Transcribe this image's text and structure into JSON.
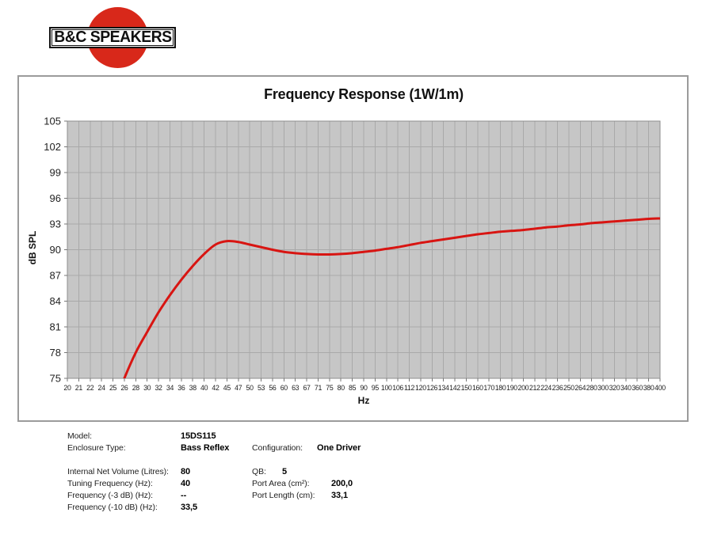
{
  "logo": {
    "text": "B&C SPEAKERS",
    "circle_color": "#d8281a"
  },
  "chart_data": {
    "type": "line",
    "title": "Frequency Response (1W/1m)",
    "xlabel": "Hz",
    "ylabel": "dB SPL",
    "x_ticks": [
      20,
      21,
      22,
      24,
      25,
      26,
      28,
      30,
      32,
      34,
      36,
      38,
      40,
      42,
      45,
      47,
      50,
      53,
      56,
      60,
      63,
      67,
      71,
      75,
      80,
      85,
      90,
      95,
      100,
      106,
      112,
      120,
      126,
      134,
      142,
      150,
      160,
      170,
      180,
      190,
      200,
      212,
      224,
      236,
      250,
      264,
      280,
      300,
      320,
      340,
      360,
      380,
      400
    ],
    "y_ticks": [
      75,
      78,
      81,
      84,
      87,
      90,
      93,
      96,
      99,
      102,
      105
    ],
    "ylim": [
      75,
      105
    ],
    "xrange_hz": [
      20,
      400
    ],
    "grid": true,
    "legend_position": "none",
    "plot_bg_color": "#c6c6c6",
    "grid_color": "#a9a9a9",
    "plot_border_color": "#8f8f8f",
    "tick_color": "#777777",
    "series": [
      {
        "name": "SPL response",
        "color": "#d81512",
        "points": [
          [
            25,
            71.5
          ],
          [
            26,
            75
          ],
          [
            28,
            78
          ],
          [
            30,
            80.4
          ],
          [
            32,
            82.7
          ],
          [
            34,
            84.7
          ],
          [
            36,
            86.5
          ],
          [
            38,
            88.1
          ],
          [
            40,
            89.5
          ],
          [
            42,
            90.6
          ],
          [
            45,
            91.0
          ],
          [
            47,
            90.9
          ],
          [
            50,
            90.6
          ],
          [
            53,
            90.3
          ],
          [
            56,
            90.0
          ],
          [
            60,
            89.75
          ],
          [
            63,
            89.6
          ],
          [
            67,
            89.5
          ],
          [
            71,
            89.45
          ],
          [
            75,
            89.45
          ],
          [
            80,
            89.5
          ],
          [
            85,
            89.6
          ],
          [
            90,
            89.75
          ],
          [
            95,
            89.9
          ],
          [
            100,
            90.1
          ],
          [
            106,
            90.3
          ],
          [
            112,
            90.55
          ],
          [
            120,
            90.8
          ],
          [
            126,
            91.0
          ],
          [
            134,
            91.2
          ],
          [
            142,
            91.4
          ],
          [
            150,
            91.6
          ],
          [
            160,
            91.8
          ],
          [
            170,
            91.95
          ],
          [
            180,
            92.1
          ],
          [
            190,
            92.2
          ],
          [
            200,
            92.3
          ],
          [
            212,
            92.45
          ],
          [
            224,
            92.6
          ],
          [
            236,
            92.7
          ],
          [
            250,
            92.85
          ],
          [
            264,
            92.95
          ],
          [
            280,
            93.1
          ],
          [
            300,
            93.2
          ],
          [
            320,
            93.3
          ],
          [
            340,
            93.4
          ],
          [
            360,
            93.5
          ],
          [
            380,
            93.6
          ],
          [
            400,
            93.65
          ]
        ]
      }
    ]
  },
  "info": {
    "left": [
      {
        "label": "Model:",
        "value": "15DS115"
      },
      {
        "label": "Enclosure Type:",
        "value": "Bass Reflex"
      },
      {
        "label": "Internal Net Volume (Litres):",
        "value": "80"
      },
      {
        "label": "Tuning Frequency (Hz):",
        "value": "40"
      },
      {
        "label": "Frequency (-3 dB) (Hz):",
        "value": "--"
      },
      {
        "label": "Frequency (-10 dB) (Hz):",
        "value": "33,5"
      }
    ],
    "right": [
      {
        "label": "Configuration:",
        "value": "One Driver"
      },
      {
        "label": "QB:",
        "value": "5"
      },
      {
        "label": "Port Area (cm²):",
        "value": "200,0"
      },
      {
        "label": "Port Length (cm):",
        "value": "33,1"
      }
    ]
  }
}
